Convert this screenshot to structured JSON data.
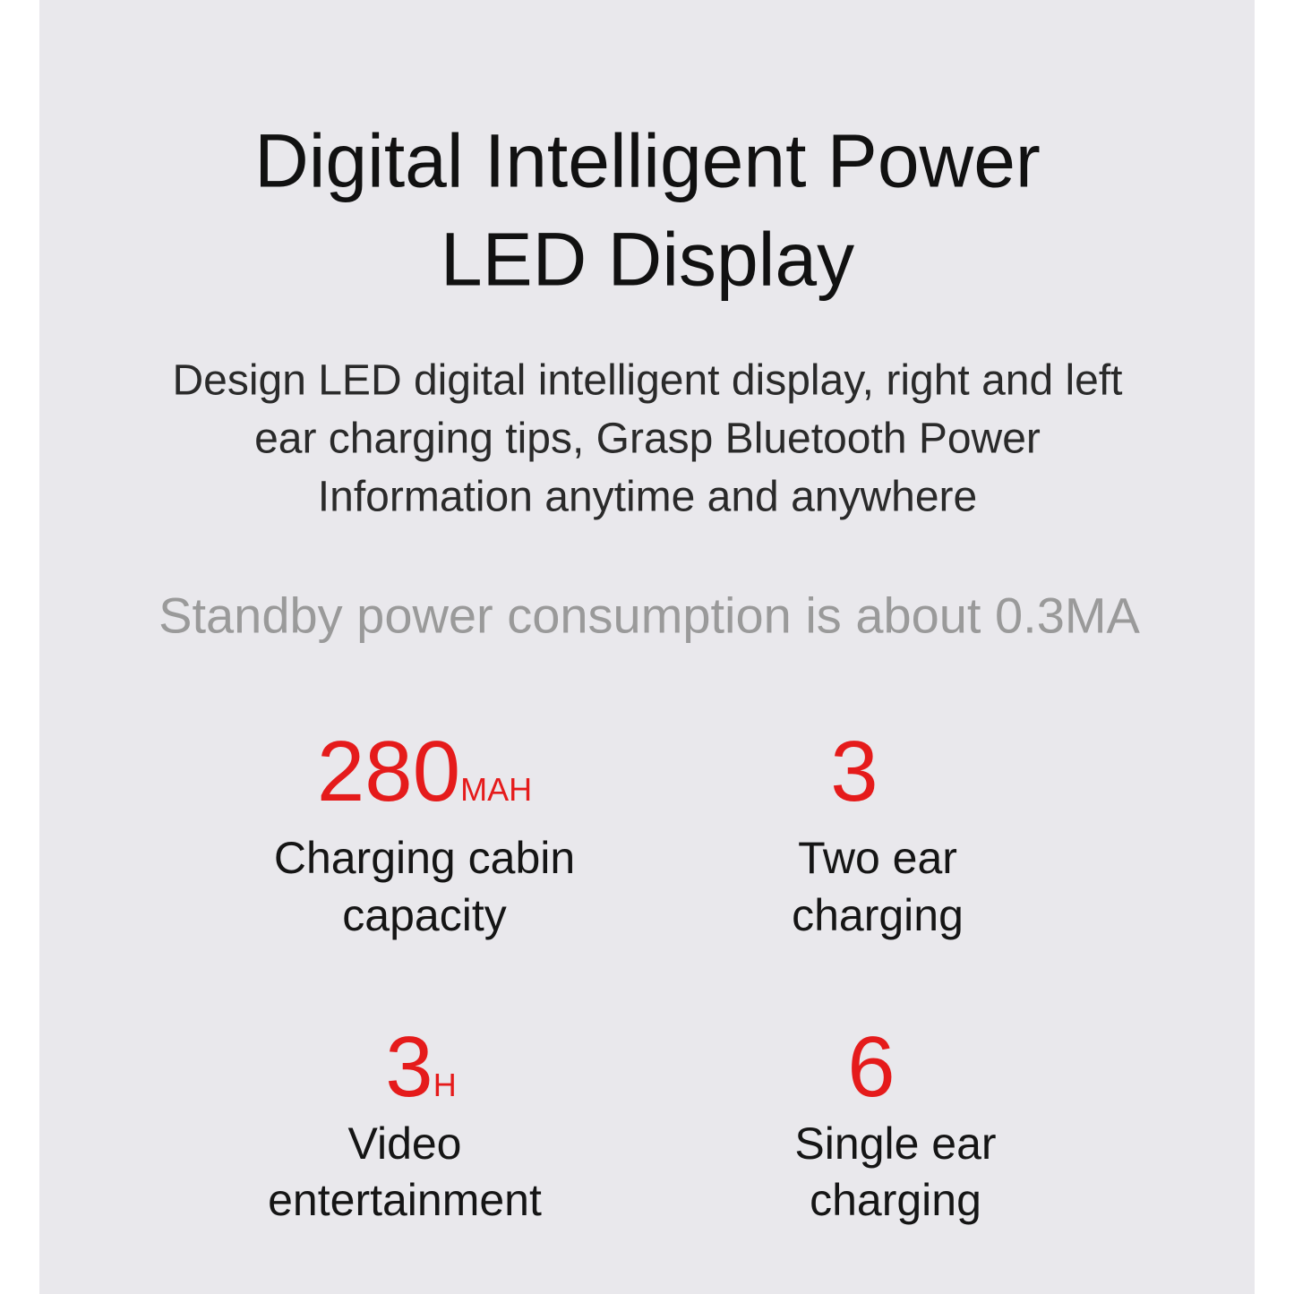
{
  "header": {
    "title_lines": [
      "Digital Intelligent Power",
      "LED Display"
    ]
  },
  "description_lines": [
    "Design LED digital intelligent display, right and left",
    "ear charging tips, Grasp Bluetooth Power",
    "Information anytime and anywhere"
  ],
  "standby": "Standby power consumption is about 0.3MA",
  "stats": [
    {
      "value": 280,
      "unit": "MAH",
      "label_lines": [
        "Charging cabin",
        "capacity"
      ]
    },
    {
      "value": 3,
      "label_lines": [
        "Two ear",
        "charging"
      ]
    },
    {
      "value": 3,
      "unit": "H",
      "label_lines": [
        "Video",
        "entertainment"
      ]
    },
    {
      "value": 6,
      "label_lines": [
        "Single ear",
        "charging"
      ]
    }
  ]
}
